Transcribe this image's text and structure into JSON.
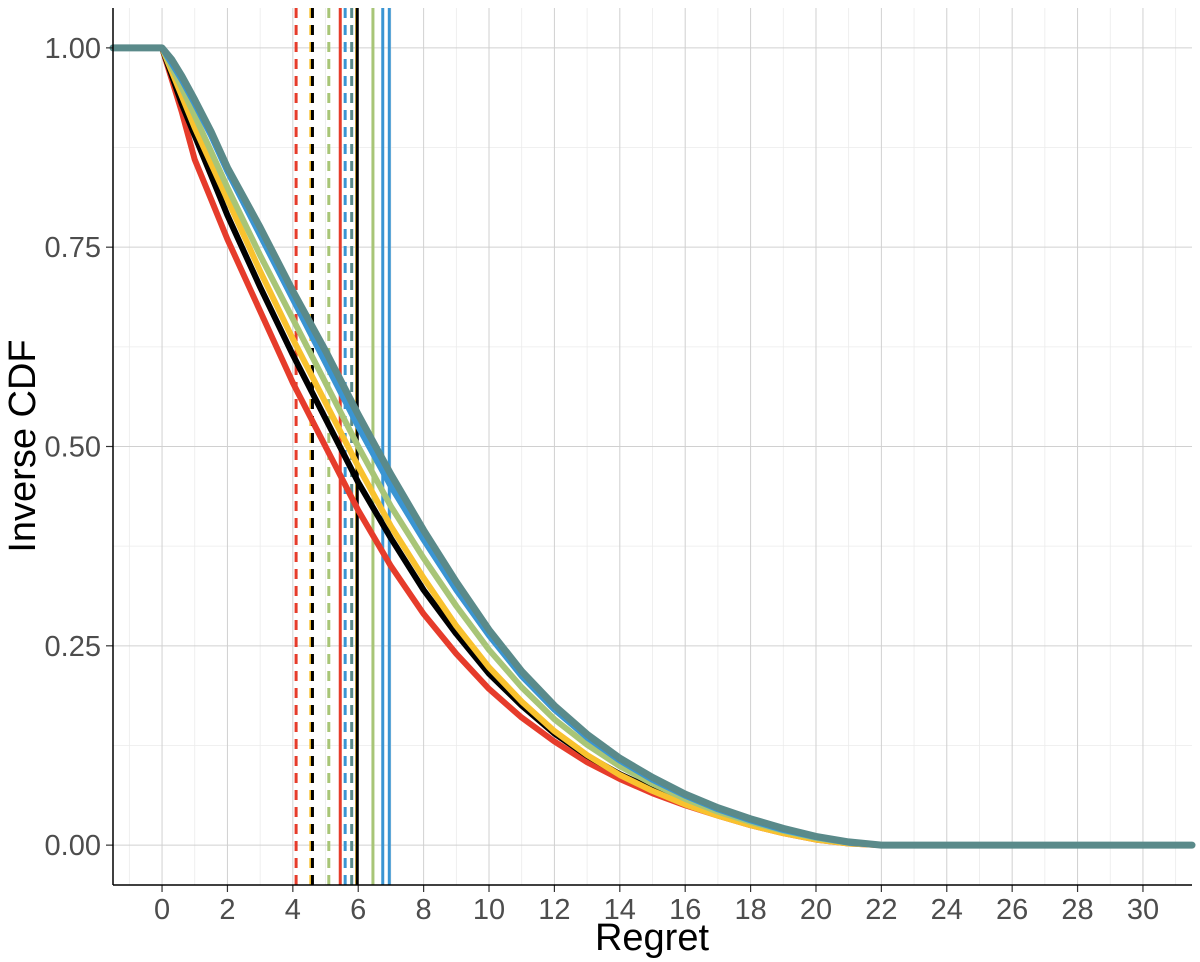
{
  "chart_data": {
    "type": "line",
    "title": "",
    "xlabel": "Regret",
    "ylabel": "Inverse CDF",
    "xlim": [
      -1.5,
      31.5
    ],
    "ylim": [
      -0.05,
      1.05
    ],
    "xticks": [
      "0",
      "2",
      "4",
      "6",
      "8",
      "10",
      "12",
      "14",
      "16",
      "18",
      "20",
      "22",
      "24",
      "26",
      "28",
      "30"
    ],
    "yticks": [
      "0.00",
      "0.25",
      "0.50",
      "0.75",
      "1.00"
    ],
    "grid": true,
    "legend": "none",
    "series": [
      {
        "color": "#e63c2b",
        "width": 6,
        "x": [
          -1.5,
          0,
          0.3,
          0.6,
          1,
          1.5,
          2,
          3,
          4,
          5,
          6,
          7,
          8,
          9,
          10,
          11,
          12,
          13,
          14,
          15,
          16,
          17,
          18,
          19,
          20,
          21,
          22,
          31.5
        ],
        "y": [
          1,
          1,
          0.96,
          0.92,
          0.86,
          0.81,
          0.76,
          0.67,
          0.58,
          0.5,
          0.42,
          0.35,
          0.29,
          0.24,
          0.196,
          0.16,
          0.13,
          0.104,
          0.083,
          0.065,
          0.05,
          0.037,
          0.025,
          0.015,
          0.007,
          0.002,
          0,
          0
        ]
      },
      {
        "color": "#000000",
        "width": 6,
        "x": [
          -1.5,
          0,
          0.3,
          0.6,
          1,
          1.5,
          2,
          3,
          4,
          5,
          6,
          7,
          8,
          9,
          10,
          11,
          12,
          13,
          14,
          15,
          16,
          17,
          18,
          19,
          20,
          21,
          22,
          31.5
        ],
        "y": [
          1,
          1,
          0.965,
          0.93,
          0.89,
          0.84,
          0.79,
          0.7,
          0.615,
          0.535,
          0.455,
          0.385,
          0.32,
          0.265,
          0.215,
          0.175,
          0.14,
          0.112,
          0.089,
          0.07,
          0.054,
          0.041,
          0.029,
          0.018,
          0.009,
          0.003,
          0,
          0
        ]
      },
      {
        "color": "#f9c22e",
        "width": 6,
        "x": [
          -1.5,
          0,
          0.3,
          0.6,
          1,
          1.5,
          2,
          3,
          4,
          5,
          6,
          7,
          8,
          9,
          10,
          11,
          12,
          13,
          14,
          15,
          16,
          17,
          18,
          19,
          20,
          21,
          22,
          31.5
        ],
        "y": [
          1,
          1,
          0.97,
          0.94,
          0.9,
          0.855,
          0.81,
          0.72,
          0.635,
          0.555,
          0.475,
          0.4,
          0.335,
          0.275,
          0.223,
          0.18,
          0.143,
          0.113,
          0.088,
          0.068,
          0.051,
          0.037,
          0.025,
          0.015,
          0.007,
          0.002,
          0,
          0
        ]
      },
      {
        "color": "#a8c577",
        "width": 6,
        "x": [
          -1.5,
          0,
          0.3,
          0.6,
          1,
          1.5,
          2,
          3,
          4,
          5,
          6,
          7,
          8,
          9,
          10,
          11,
          12,
          13,
          14,
          15,
          16,
          17,
          18,
          19,
          20,
          21,
          22,
          31.5
        ],
        "y": [
          1,
          1,
          0.975,
          0.95,
          0.915,
          0.87,
          0.825,
          0.74,
          0.66,
          0.58,
          0.5,
          0.425,
          0.36,
          0.3,
          0.245,
          0.198,
          0.158,
          0.126,
          0.099,
          0.077,
          0.058,
          0.042,
          0.029,
          0.018,
          0.009,
          0.003,
          0,
          0
        ]
      },
      {
        "color": "#3a95d3",
        "width": 6,
        "x": [
          -1.5,
          0,
          0.3,
          0.6,
          1,
          1.5,
          2,
          3,
          4,
          5,
          6,
          7,
          8,
          9,
          10,
          11,
          12,
          13,
          14,
          15,
          16,
          17,
          18,
          19,
          20,
          21,
          22,
          31.5
        ],
        "y": [
          1,
          1,
          0.98,
          0.96,
          0.93,
          0.89,
          0.845,
          0.765,
          0.685,
          0.605,
          0.525,
          0.45,
          0.383,
          0.32,
          0.263,
          0.212,
          0.17,
          0.135,
          0.106,
          0.082,
          0.062,
          0.045,
          0.031,
          0.019,
          0.01,
          0.003,
          0,
          0
        ]
      },
      {
        "color": "#5a8a8a",
        "width": 7,
        "x": [
          -1.5,
          0,
          0.3,
          0.6,
          1,
          1.5,
          2,
          3,
          4,
          5,
          6,
          7,
          8,
          9,
          10,
          11,
          12,
          13,
          14,
          15,
          16,
          17,
          18,
          19,
          20,
          21,
          22,
          31.5
        ],
        "y": [
          1,
          1,
          0.985,
          0.965,
          0.935,
          0.895,
          0.85,
          0.775,
          0.695,
          0.62,
          0.54,
          0.465,
          0.395,
          0.33,
          0.27,
          0.218,
          0.175,
          0.139,
          0.109,
          0.085,
          0.064,
          0.047,
          0.033,
          0.021,
          0.011,
          0.004,
          0,
          0
        ]
      }
    ],
    "vlines": [
      {
        "x": 4.1,
        "color": "#e63c2b",
        "style": "dashed"
      },
      {
        "x": 4.55,
        "color": "#f9c22e",
        "style": "dashed"
      },
      {
        "x": 4.6,
        "color": "#000000",
        "style": "dashed"
      },
      {
        "x": 5.1,
        "color": "#a8c577",
        "style": "dashed"
      },
      {
        "x": 5.45,
        "color": "#e63c2b",
        "style": "solid"
      },
      {
        "x": 5.6,
        "color": "#3a95d3",
        "style": "dashed"
      },
      {
        "x": 5.8,
        "color": "#5a8a8a",
        "style": "dashed"
      },
      {
        "x": 5.95,
        "color": "#f9c22e",
        "style": "solid"
      },
      {
        "x": 5.97,
        "color": "#000000",
        "style": "solid"
      },
      {
        "x": 6.45,
        "color": "#a8c577",
        "style": "solid"
      },
      {
        "x": 6.75,
        "color": "#3a95d3",
        "style": "solid"
      },
      {
        "x": 6.95,
        "color": "#3a95d3",
        "style": "solid"
      }
    ]
  }
}
